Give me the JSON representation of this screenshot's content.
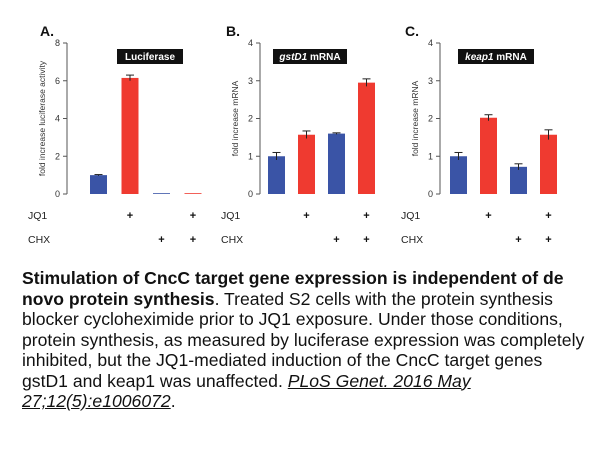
{
  "conditions": {
    "jq1_label": "JQ1",
    "chx_label": "CHX",
    "jq1": [
      "",
      "+",
      "",
      "+"
    ],
    "chx": [
      "",
      "",
      "+",
      "+"
    ],
    "mark": "+"
  },
  "colors": {
    "blue": "#3a54a6",
    "red": "#ef3a30",
    "axis": "#555555"
  },
  "chart_data": [
    {
      "type": "bar",
      "panel_label": "A.",
      "title": "Luciferase",
      "title_parts": [
        {
          "t": "Luciferase",
          "i": false
        }
      ],
      "ylabel": "fold increase luciferase activity",
      "ylim": [
        0,
        8
      ],
      "yticks": [
        0,
        2,
        4,
        6,
        8
      ],
      "categories": [
        "-/-",
        "JQ1",
        "CHX",
        "JQ1+CHX"
      ],
      "values": [
        1.0,
        6.15,
        0.02,
        0.02
      ],
      "errors": [
        0.03,
        0.15,
        0.0,
        0.0
      ],
      "bar_colors": [
        "blue",
        "red",
        "blue",
        "red"
      ]
    },
    {
      "type": "bar",
      "panel_label": "B.",
      "title": "gstD1 mRNA",
      "title_parts": [
        {
          "t": "gstD1",
          "i": true
        },
        {
          "t": " mRNA",
          "i": false
        }
      ],
      "ylabel": "fold increase mRNA",
      "ylim": [
        0,
        4
      ],
      "yticks": [
        0,
        1,
        2,
        3,
        4
      ],
      "categories": [
        "-/-",
        "JQ1",
        "CHX",
        "JQ1+CHX"
      ],
      "values": [
        1.0,
        1.57,
        1.6,
        2.95
      ],
      "errors": [
        0.1,
        0.1,
        0.02,
        0.1
      ],
      "bar_colors": [
        "blue",
        "red",
        "blue",
        "red"
      ]
    },
    {
      "type": "bar",
      "panel_label": "C.",
      "title": "keap1 mRNA",
      "title_parts": [
        {
          "t": "keap1",
          "i": true
        },
        {
          "t": " mRNA",
          "i": false
        }
      ],
      "ylabel": "fold increase mRNA",
      "ylim": [
        0,
        4
      ],
      "yticks": [
        0,
        1,
        2,
        3,
        4
      ],
      "categories": [
        "-/-",
        "JQ1",
        "CHX",
        "JQ1+CHX"
      ],
      "values": [
        1.0,
        2.02,
        0.72,
        1.57
      ],
      "errors": [
        0.1,
        0.08,
        0.08,
        0.13
      ],
      "bar_colors": [
        "blue",
        "red",
        "blue",
        "red"
      ]
    }
  ],
  "caption": {
    "title": "Stimulation of CncC target gene expression is independent of de novo protein synthesis",
    "body": ". Treated S2 cells with the protein synthesis blocker cycloheximide prior to JQ1 exposure. Under those conditions, protein synthesis, as measured by luciferase expression was completely inhibited, but the JQ1-mediated induction of the CncC target genes gstD1 and keap1 was unaffected. ",
    "citation": "PLoS Genet. 2016 May 27;12(5):e1006072",
    "end": "."
  }
}
